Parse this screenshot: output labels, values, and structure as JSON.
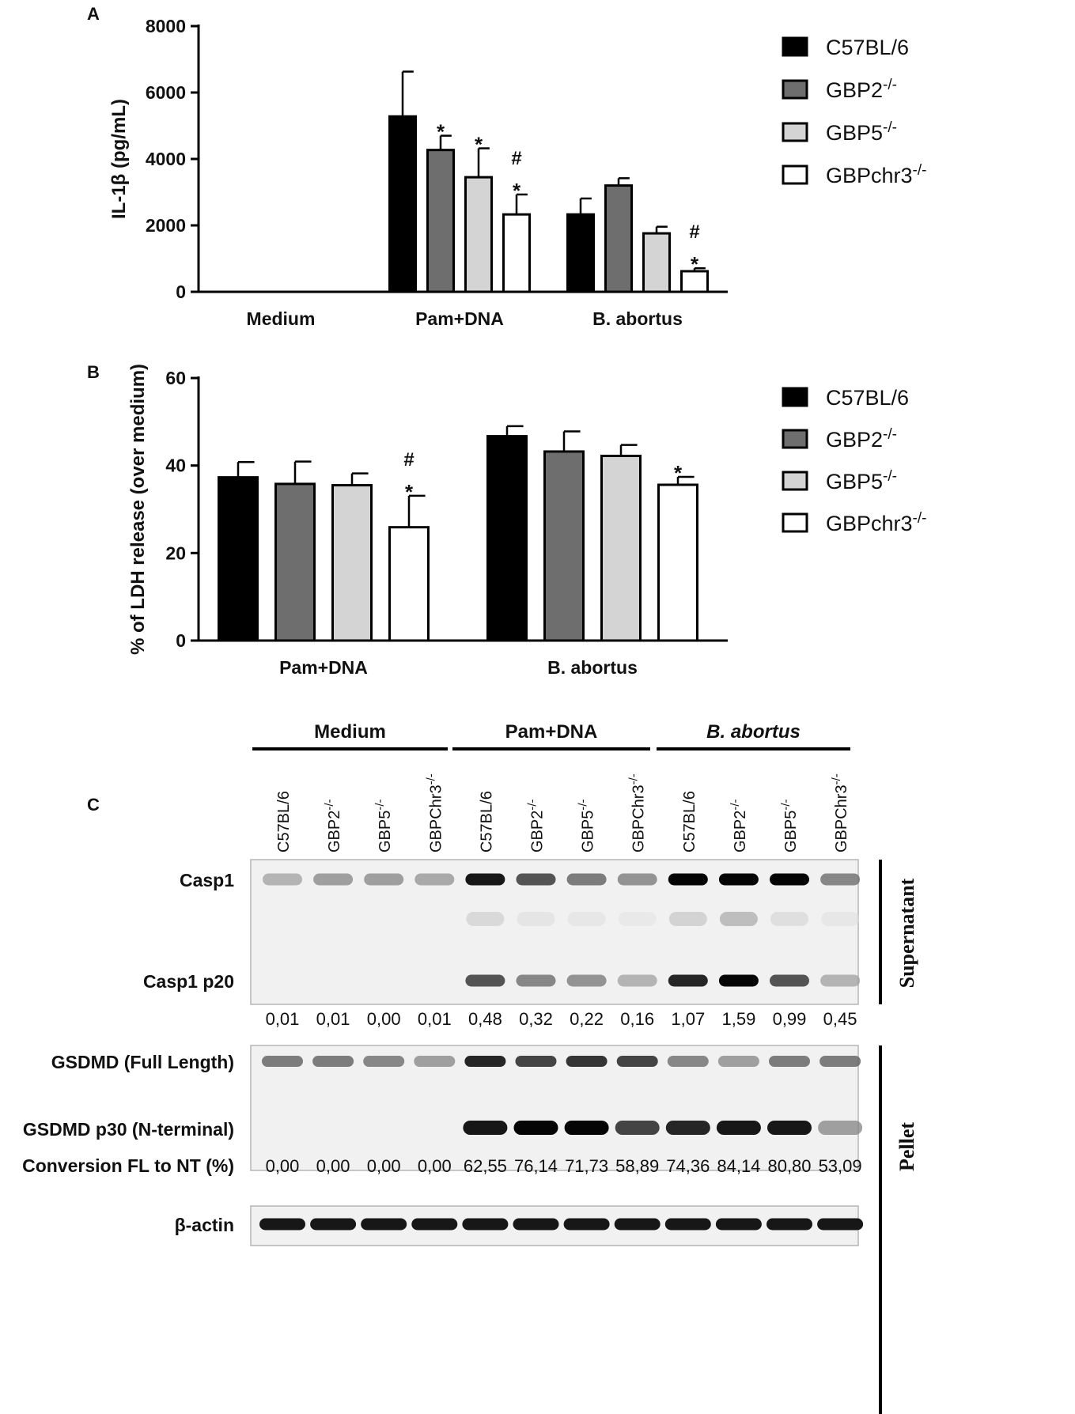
{
  "chart_data": [
    {
      "panel": "A",
      "type": "bar",
      "ylabel": "IL-1β (pg/mL)",
      "ylim": [
        0,
        8000
      ],
      "yticks": [
        "0",
        "2000",
        "4000",
        "6000",
        "8000"
      ],
      "categories": [
        "Medium",
        "Pam+DNA",
        "B. abortus"
      ],
      "series": [
        {
          "name": "C57BL/6",
          "values": [
            0,
            5280,
            2330
          ],
          "errors": [
            0,
            1350,
            480
          ]
        },
        {
          "name": "GBP2-/-",
          "values": [
            0,
            4270,
            3200
          ],
          "errors": [
            0,
            430,
            220
          ]
        },
        {
          "name": "GBP5-/-",
          "values": [
            0,
            3450,
            1760
          ],
          "errors": [
            0,
            870,
            200
          ]
        },
        {
          "name": "GBPchr3-/-",
          "values": [
            0,
            2330,
            620
          ],
          "errors": [
            0,
            600,
            90
          ]
        }
      ],
      "annotations": [
        {
          "series": 1,
          "category": 1,
          "marks": [
            "*"
          ]
        },
        {
          "series": 2,
          "category": 1,
          "marks": [
            "*"
          ]
        },
        {
          "series": 3,
          "category": 1,
          "marks": [
            "#",
            "*"
          ]
        },
        {
          "series": 3,
          "category": 2,
          "marks": [
            "#",
            "*"
          ]
        }
      ],
      "legend_position": "right"
    },
    {
      "panel": "B",
      "type": "bar",
      "ylabel": "% of LDH release (over medium)",
      "ylim": [
        0,
        60
      ],
      "yticks": [
        "0",
        "20",
        "40",
        "60"
      ],
      "categories": [
        "Pam+DNA",
        "B. abortus"
      ],
      "series": [
        {
          "name": "C57BL/6",
          "values": [
            37.3,
            46.7
          ],
          "errors": [
            3.5,
            2.3
          ]
        },
        {
          "name": "GBP2-/-",
          "values": [
            35.8,
            43.2
          ],
          "errors": [
            5.1,
            4.6
          ]
        },
        {
          "name": "GBP5-/-",
          "values": [
            35.5,
            42.2
          ],
          "errors": [
            2.7,
            2.5
          ]
        },
        {
          "name": "GBPchr3-/-",
          "values": [
            25.9,
            35.6
          ],
          "errors": [
            7.2,
            1.8
          ]
        }
      ],
      "annotations": [
        {
          "series": 3,
          "category": 0,
          "marks": [
            "#",
            "*"
          ]
        },
        {
          "series": 3,
          "category": 1,
          "marks": [
            "*"
          ]
        }
      ],
      "legend_position": "right"
    }
  ],
  "panels": {
    "a": "A",
    "b": "B",
    "c": "C"
  },
  "legend": [
    {
      "base": "C57BL/6",
      "sup": "",
      "fill": "#000000"
    },
    {
      "base": "GBP2",
      "sup": "-/-",
      "fill": "#6e6e6e"
    },
    {
      "base": "GBP5",
      "sup": "-/-",
      "fill": "#d4d4d4"
    },
    {
      "base": "GBPchr3",
      "sup": "-/-",
      "fill": "#ffffff"
    }
  ],
  "blot": {
    "groups": [
      "Medium",
      "Pam+DNA",
      "B. abortus"
    ],
    "lanes": [
      {
        "base": "C57BL/6",
        "sup": ""
      },
      {
        "base": "GBP2",
        "sup": "-/-"
      },
      {
        "base": "GBP5",
        "sup": "-/-"
      },
      {
        "base": "GBPChr3",
        "sup": "-/-"
      },
      {
        "base": "C57BL/6",
        "sup": ""
      },
      {
        "base": "GBP2",
        "sup": "-/-"
      },
      {
        "base": "GBP5",
        "sup": "-/-"
      },
      {
        "base": "GBPChr3",
        "sup": "-/-"
      },
      {
        "base": "C57BL/6",
        "sup": ""
      },
      {
        "base": "GBP2",
        "sup": "-/-"
      },
      {
        "base": "GBP5",
        "sup": "-/-"
      },
      {
        "base": "GBPChr3",
        "sup": "-/-"
      }
    ],
    "row_labels": {
      "casp1": "Casp1",
      "casp1_p20": "Casp1 p20",
      "gsdmd_fl": "GSDMD (Full Length)",
      "gsdmd_p30": "GSDMD p30 (N-terminal)",
      "conversion": "Conversion FL to NT (%)",
      "actin": "β-actin"
    },
    "side_labels": {
      "supernatant": "Supernatant",
      "pellet": "Pellet"
    },
    "casp1_ratio": [
      "0,01",
      "0,01",
      "0,00",
      "0,01",
      "0,48",
      "0,32",
      "0,22",
      "0,16",
      "1,07",
      "1,59",
      "0,99",
      "0,45"
    ],
    "conversion_values": [
      "0,00",
      "0,00",
      "0,00",
      "0,00",
      "62,55",
      "76,14",
      "71,73",
      "58,89",
      "74,36",
      "84,14",
      "80,80",
      "53,09"
    ],
    "band_intensity": {
      "casp1": [
        0.35,
        0.45,
        0.45,
        0.4,
        0.95,
        0.75,
        0.6,
        0.5,
        1.0,
        1.0,
        1.0,
        0.55
      ],
      "casp1_mid": [
        0,
        0,
        0,
        0,
        0.15,
        0.06,
        0.05,
        0.04,
        0.18,
        0.3,
        0.1,
        0.05
      ],
      "casp1_p20": [
        0,
        0,
        0,
        0,
        0.75,
        0.55,
        0.5,
        0.35,
        0.9,
        1.0,
        0.75,
        0.35
      ],
      "gsdmd_fl": [
        0.6,
        0.6,
        0.55,
        0.45,
        0.9,
        0.8,
        0.85,
        0.8,
        0.55,
        0.45,
        0.6,
        0.6
      ],
      "gsdmd_p30": [
        0,
        0,
        0,
        0,
        0.95,
        1.0,
        1.0,
        0.8,
        0.9,
        0.95,
        0.95,
        0.45
      ],
      "actin": [
        0.95,
        0.95,
        0.95,
        0.95,
        0.95,
        0.95,
        0.95,
        0.95,
        0.95,
        0.95,
        0.95,
        0.95
      ]
    }
  }
}
